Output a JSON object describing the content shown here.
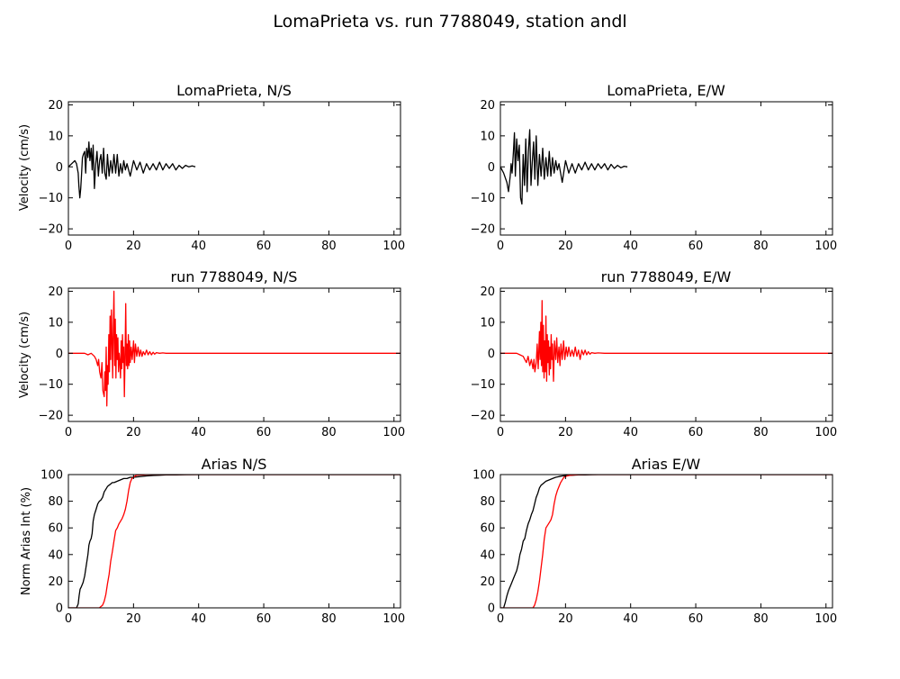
{
  "figure": {
    "title": "LomaPrieta vs. run 7788049, station andl"
  },
  "colors": {
    "recorded": "#000000",
    "simulated": "#ff0000",
    "axes": "#000000"
  },
  "chart_data": [
    {
      "id": "p1",
      "type": "line",
      "title": "LomaPrieta, N/S",
      "ylabel": "Velocity (cm/s)",
      "xlim": [
        0,
        102
      ],
      "ylim": [
        -22,
        21
      ],
      "xticks": [
        0,
        20,
        40,
        60,
        80,
        100
      ],
      "yticks": [
        -20,
        -10,
        0,
        10,
        20
      ],
      "series": [
        {
          "color": "#000000",
          "x": [
            0,
            1,
            2,
            2.5,
            3,
            3.2,
            3.5,
            3.8,
            4,
            4.3,
            4.6,
            5,
            5.3,
            5.6,
            6,
            6.3,
            6.6,
            7,
            7.3,
            7.6,
            8,
            8.4,
            8.8,
            9.2,
            9.6,
            10,
            10.4,
            10.8,
            11.2,
            11.6,
            12,
            12.5,
            13,
            13.5,
            14,
            14.5,
            15,
            15.5,
            16,
            16.5,
            17,
            17.5,
            18,
            19,
            20,
            21,
            22,
            23,
            24,
            25,
            26,
            27,
            28,
            29,
            30,
            31,
            32,
            33,
            34,
            35,
            36,
            37,
            38,
            39
          ],
          "y": [
            0,
            1,
            2,
            1,
            -2,
            -6,
            -10,
            -7,
            -3,
            3,
            4,
            5,
            -2,
            6,
            3,
            8,
            2,
            6,
            -1,
            7,
            -7,
            1,
            5,
            -3,
            2,
            4,
            -2,
            6,
            -2,
            -4,
            4,
            -3,
            2,
            -2,
            4,
            -2,
            4,
            -3,
            1,
            -2,
            2,
            -1,
            1,
            -3,
            2,
            -1,
            1.5,
            -2,
            1,
            -1,
            1,
            -1,
            1.5,
            -1,
            1,
            -0.5,
            1,
            -1,
            0.5,
            -0.5,
            0.5,
            0,
            0.3,
            0
          ]
        }
      ]
    },
    {
      "id": "p2",
      "type": "line",
      "title": "LomaPrieta, E/W",
      "ylabel": "",
      "xlim": [
        0,
        102
      ],
      "ylim": [
        -22,
        21
      ],
      "xticks": [
        0,
        20,
        40,
        60,
        80,
        100
      ],
      "yticks": [
        -20,
        -10,
        0,
        10,
        20
      ],
      "series": [
        {
          "color": "#000000",
          "x": [
            0,
            1,
            2,
            2.5,
            3,
            3.3,
            3.6,
            4,
            4.3,
            4.6,
            5,
            5.4,
            5.8,
            6.2,
            6.6,
            7,
            7.4,
            7.8,
            8.2,
            8.6,
            9,
            9.4,
            9.8,
            10.2,
            10.6,
            11,
            11.5,
            12,
            12.5,
            13,
            13.5,
            14,
            14.5,
            15,
            15.5,
            16,
            16.5,
            17,
            17.5,
            18,
            18.5,
            19,
            20,
            21,
            22,
            23,
            24,
            25,
            26,
            27,
            28,
            29,
            30,
            31,
            32,
            33,
            34,
            35,
            36,
            37,
            38,
            39
          ],
          "y": [
            0,
            -2,
            -5,
            -8,
            -3,
            1,
            -2,
            5,
            11,
            -3,
            9,
            2,
            7,
            -10,
            -12,
            4,
            -6,
            9,
            -8,
            5,
            12,
            -6,
            2,
            8,
            -4,
            10,
            -6,
            4,
            -3,
            6,
            -4,
            3,
            -3,
            5,
            -3,
            3,
            -2,
            2,
            -1,
            1,
            -2,
            -5,
            2,
            -2,
            1,
            -2,
            1,
            -1,
            1.5,
            -1,
            1,
            -1,
            1,
            -0.5,
            1,
            -1,
            0.8,
            -0.5,
            0.5,
            -0.3,
            0.2,
            0
          ]
        }
      ]
    },
    {
      "id": "p3",
      "type": "line",
      "title": "run 7788049, N/S",
      "ylabel": "Velocity (cm/s)",
      "xlim": [
        0,
        102
      ],
      "ylim": [
        -22,
        21
      ],
      "xticks": [
        0,
        20,
        40,
        60,
        80,
        100
      ],
      "yticks": [
        -20,
        -10,
        0,
        10,
        20
      ],
      "series": [
        {
          "color": "#ff0000",
          "x": [
            0,
            5,
            6,
            7,
            8,
            8.5,
            9,
            9.3,
            9.6,
            10,
            10.3,
            10.6,
            11,
            11.2,
            11.4,
            11.6,
            11.8,
            12,
            12.2,
            12.4,
            12.6,
            12.8,
            13,
            13.2,
            13.4,
            13.6,
            13.8,
            14,
            14.2,
            14.4,
            14.6,
            14.8,
            15,
            15.2,
            15.4,
            15.6,
            15.8,
            16,
            16.2,
            16.4,
            16.6,
            16.8,
            17,
            17.2,
            17.4,
            17.6,
            17.8,
            18,
            18.2,
            18.4,
            18.6,
            18.8,
            19,
            19.3,
            19.6,
            20,
            20.3,
            20.6,
            21,
            21.4,
            21.8,
            22.2,
            22.6,
            23,
            23.5,
            24,
            24.5,
            25,
            25.5,
            26,
            26.5,
            27,
            28,
            29,
            30,
            32,
            35,
            40,
            50,
            60,
            70,
            80,
            90,
            100,
            102
          ],
          "y": [
            0,
            0,
            -0.5,
            0,
            -1,
            -2,
            -4,
            -2,
            -6,
            -8,
            -3,
            -12,
            -14,
            -6,
            -12,
            2,
            -17,
            -4,
            -10,
            6,
            -6,
            12,
            -2,
            14,
            4,
            -8,
            8,
            20,
            -4,
            11,
            -8,
            6,
            -2,
            5,
            -6,
            0,
            -3,
            -8,
            4,
            -5,
            6,
            -3,
            2,
            -14,
            -2,
            16,
            -4,
            3,
            -5,
            6,
            -4,
            4,
            -3,
            2,
            -2,
            4,
            -3,
            3,
            -1,
            2,
            -1,
            1,
            -1,
            0.5,
            -0.5,
            1,
            -0.5,
            0.5,
            -0.5,
            0.3,
            -0.3,
            0.2,
            0,
            0.1,
            0,
            0,
            0,
            0,
            0,
            0,
            0,
            0,
            0,
            0,
            0
          ]
        }
      ]
    },
    {
      "id": "p4",
      "type": "line",
      "title": "run 7788049, E/W",
      "ylabel": "",
      "xlim": [
        0,
        102
      ],
      "ylim": [
        -22,
        21
      ],
      "xticks": [
        0,
        20,
        40,
        60,
        80,
        100
      ],
      "yticks": [
        -20,
        -10,
        0,
        10,
        20
      ],
      "series": [
        {
          "color": "#ff0000",
          "x": [
            0,
            5,
            6,
            7,
            7.5,
            8,
            8.5,
            9,
            9.5,
            10,
            10.3,
            10.6,
            11,
            11.3,
            11.6,
            12,
            12.2,
            12.4,
            12.6,
            12.8,
            13,
            13.2,
            13.4,
            13.6,
            13.8,
            14,
            14.2,
            14.4,
            14.6,
            14.8,
            15,
            15.2,
            15.4,
            15.6,
            15.8,
            16,
            16.3,
            16.6,
            17,
            17.3,
            17.6,
            18,
            18.3,
            18.6,
            19,
            19.4,
            19.8,
            20.2,
            20.6,
            21,
            21.5,
            22,
            22.5,
            23,
            23.5,
            24,
            24.5,
            25,
            25.5,
            26,
            26.5,
            27,
            27.5,
            28,
            29,
            30,
            32,
            35,
            40,
            50,
            60,
            70,
            80,
            90,
            100,
            102
          ],
          "y": [
            0,
            0,
            -0.5,
            -1,
            -2,
            -3,
            -1,
            -4,
            -2,
            -5,
            -2,
            -6,
            -3,
            3,
            -5,
            7,
            -2,
            10,
            -4,
            17,
            -6,
            9,
            -8,
            4,
            -6,
            12,
            -9,
            6,
            -3,
            4,
            -7,
            2,
            -5,
            6,
            -2,
            3,
            -9,
            4,
            -2,
            5,
            -3,
            2,
            -4,
            3,
            -2,
            4,
            -2,
            2,
            -1,
            2,
            -1,
            1,
            -1,
            2,
            -1,
            1,
            -2,
            1,
            -0.5,
            1,
            -0.5,
            0.5,
            -0.3,
            0.2,
            0,
            0.1,
            0,
            0,
            0,
            0,
            0,
            0,
            0,
            0,
            0,
            0
          ]
        }
      ]
    },
    {
      "id": "p5",
      "type": "line",
      "title": "Arias N/S",
      "ylabel": "Norm Arias Int (%)",
      "xlim": [
        0,
        102
      ],
      "ylim": [
        0,
        100
      ],
      "xticks": [
        0,
        20,
        40,
        60,
        80,
        100
      ],
      "yticks": [
        0,
        20,
        40,
        60,
        80,
        100
      ],
      "series": [
        {
          "color": "#000000",
          "x": [
            0,
            2.5,
            3,
            3.3,
            3.6,
            4,
            4.5,
            5,
            5.5,
            6,
            6.3,
            6.6,
            7,
            7.3,
            7.6,
            8,
            8.5,
            9,
            9.5,
            10,
            10.5,
            11,
            11.5,
            12,
            12.5,
            13,
            13.5,
            14,
            15,
            16,
            17,
            18,
            19,
            20,
            22,
            24,
            26,
            28,
            30,
            33,
            36,
            40,
            50,
            102
          ],
          "y": [
            0,
            0,
            3,
            9,
            14,
            16,
            19,
            24,
            32,
            40,
            47,
            50,
            52,
            56,
            65,
            70,
            74,
            78,
            80,
            81,
            83,
            87,
            89,
            91,
            92,
            93,
            94,
            94,
            95,
            96,
            97,
            97,
            98,
            98,
            98.5,
            99,
            99.3,
            99.5,
            99.7,
            99.8,
            99.9,
            100,
            100,
            100
          ]
        }
      ]
    },
    {
      "id": "p6",
      "type": "line",
      "title": "Arias E/W",
      "ylabel": "",
      "xlim": [
        0,
        102
      ],
      "ylim": [
        0,
        100
      ],
      "xticks": [
        0,
        20,
        40,
        60,
        80,
        100
      ],
      "yticks": [
        0,
        20,
        40,
        60,
        80,
        100
      ],
      "series": [
        {
          "color": "#000000",
          "x": [
            0,
            1,
            1.5,
            2,
            2.5,
            3,
            3.5,
            4,
            4.5,
            5,
            5.5,
            6,
            6.5,
            7,
            7.5,
            8,
            8.5,
            9,
            9.5,
            10,
            10.5,
            11,
            11.5,
            12,
            12.5,
            13,
            13.5,
            14,
            15,
            16,
            17,
            18,
            19,
            20,
            22,
            24,
            26,
            28,
            30,
            33,
            36,
            40,
            50,
            102
          ],
          "y": [
            0,
            0,
            4,
            9,
            13,
            16,
            19,
            22,
            25,
            28,
            33,
            40,
            44,
            50,
            52,
            58,
            63,
            66,
            70,
            73,
            78,
            83,
            86,
            90,
            92,
            93,
            94,
            95,
            96,
            97,
            98,
            98.5,
            99,
            99.2,
            99.5,
            99.7,
            99.8,
            99.9,
            100,
            100,
            100,
            100,
            100,
            100
          ]
        }
      ]
    }
  ]
}
